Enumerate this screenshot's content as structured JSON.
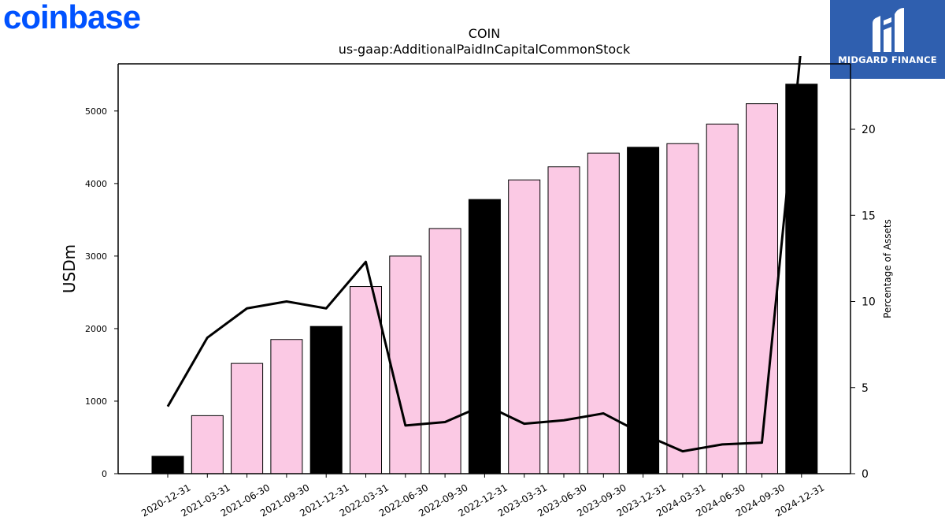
{
  "logos": {
    "company": "coinbase",
    "publisher": "MIDGARD FINANCE",
    "company_color": "#0052ff",
    "publisher_bg": "#2f5faf"
  },
  "chart_data": {
    "type": "bar",
    "title": "COIN",
    "subtitle": "us-gaap:AdditionalPaidInCapitalCommonStock",
    "ylabel": "USDm",
    "y2label": "Percentage of Assets",
    "ylim": [
      0,
      5650
    ],
    "y2lim": [
      0,
      23.8
    ],
    "yticks": [
      0,
      1000,
      2000,
      3000,
      4000,
      5000
    ],
    "y2ticks": [
      0,
      5,
      10,
      15,
      20
    ],
    "categories": [
      "2020-12-31",
      "2021-03-31",
      "2021-06-30",
      "2021-09-30",
      "2021-12-31",
      "2022-03-31",
      "2022-06-30",
      "2022-09-30",
      "2022-12-31",
      "2023-03-31",
      "2023-06-30",
      "2023-09-30",
      "2023-12-31",
      "2024-03-31",
      "2024-06-30",
      "2024-09-30",
      "2024-12-31"
    ],
    "series": [
      {
        "axis": "left",
        "values": [
          240,
          800,
          1520,
          1850,
          2030,
          2580,
          3000,
          3380,
          3780,
          4050,
          4230,
          4420,
          4500,
          4550,
          4820,
          5100,
          5370
        ]
      },
      {
        "axis": "right",
        "type": "line",
        "values": [
          3.9,
          7.9,
          9.6,
          10.0,
          9.6,
          12.3,
          2.8,
          3.0,
          4.0,
          2.9,
          3.1,
          3.5,
          2.3,
          1.3,
          1.7,
          1.8,
          25.0
        ]
      }
    ],
    "bar_colors": {
      "year_end": "#000000",
      "quarter": "#fbc9e4"
    },
    "line_color": "#000000",
    "grid": false,
    "legend": "none"
  }
}
